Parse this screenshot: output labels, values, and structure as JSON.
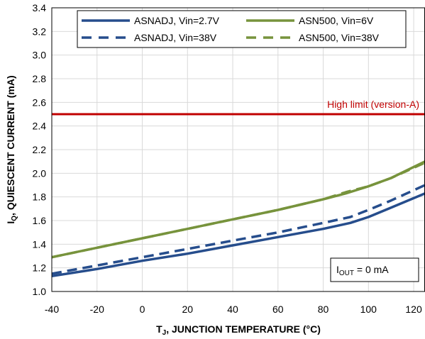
{
  "chart_data": {
    "type": "line",
    "xlabel_main": "T",
    "xlabel_sub": "J",
    "xlabel_rest": ", JUNCTION TEMPERATURE (°C)",
    "ylabel_main": "I",
    "ylabel_sub": "Q",
    "ylabel_rest": ", QUIESCENT CURRENT (mA)",
    "xlim": [
      -40,
      125
    ],
    "ylim": [
      1.0,
      3.4
    ],
    "x_ticks": [
      "-40",
      "-20",
      "0",
      "20",
      "40",
      "60",
      "80",
      "100",
      "120"
    ],
    "y_ticks": [
      "1.0",
      "1.2",
      "1.4",
      "1.6",
      "1.8",
      "2.0",
      "2.2",
      "2.4",
      "2.6",
      "2.8",
      "3.0",
      "3.2",
      "3.4"
    ],
    "grid": true,
    "legend_position": "top",
    "series": [
      {
        "name": "ASNADJ, Vin=2.7V",
        "color": "#264d8c",
        "dash": "solid",
        "points": [
          [
            -40,
            1.13
          ],
          [
            -20,
            1.19
          ],
          [
            0,
            1.26
          ],
          [
            20,
            1.32
          ],
          [
            40,
            1.39
          ],
          [
            60,
            1.46
          ],
          [
            80,
            1.53
          ],
          [
            92,
            1.58
          ],
          [
            100,
            1.63
          ],
          [
            110,
            1.71
          ],
          [
            125,
            1.83
          ]
        ]
      },
      {
        "name": "ASNADJ, Vin=38V",
        "color": "#264d8c",
        "dash": "dashed",
        "points": [
          [
            -40,
            1.15
          ],
          [
            -20,
            1.22
          ],
          [
            0,
            1.29
          ],
          [
            20,
            1.36
          ],
          [
            40,
            1.43
          ],
          [
            60,
            1.5
          ],
          [
            80,
            1.58
          ],
          [
            92,
            1.63
          ],
          [
            100,
            1.69
          ],
          [
            110,
            1.77
          ],
          [
            125,
            1.9
          ]
        ]
      },
      {
        "name": "ASN500, Vin=6V",
        "color": "#77933c",
        "dash": "solid",
        "points": [
          [
            -40,
            1.29
          ],
          [
            -20,
            1.37
          ],
          [
            0,
            1.45
          ],
          [
            20,
            1.53
          ],
          [
            40,
            1.61
          ],
          [
            60,
            1.69
          ],
          [
            80,
            1.78
          ],
          [
            90,
            1.83
          ],
          [
            100,
            1.89
          ],
          [
            110,
            1.96
          ],
          [
            125,
            2.1
          ]
        ]
      },
      {
        "name": "ASN500, Vin=38V",
        "color": "#77933c",
        "dash": "dashed",
        "points": [
          [
            -40,
            1.29
          ],
          [
            -20,
            1.37
          ],
          [
            0,
            1.45
          ],
          [
            20,
            1.53
          ],
          [
            40,
            1.61
          ],
          [
            60,
            1.69
          ],
          [
            80,
            1.78
          ],
          [
            90,
            1.84
          ],
          [
            100,
            1.89
          ],
          [
            110,
            1.96
          ],
          [
            125,
            2.09
          ]
        ]
      }
    ],
    "reference_line": {
      "label": "High limit (version-A)",
      "y": 2.5,
      "color": "#c00000"
    },
    "note": {
      "main": "I",
      "sub": "OUT",
      "rest": " = 0 mA"
    }
  }
}
